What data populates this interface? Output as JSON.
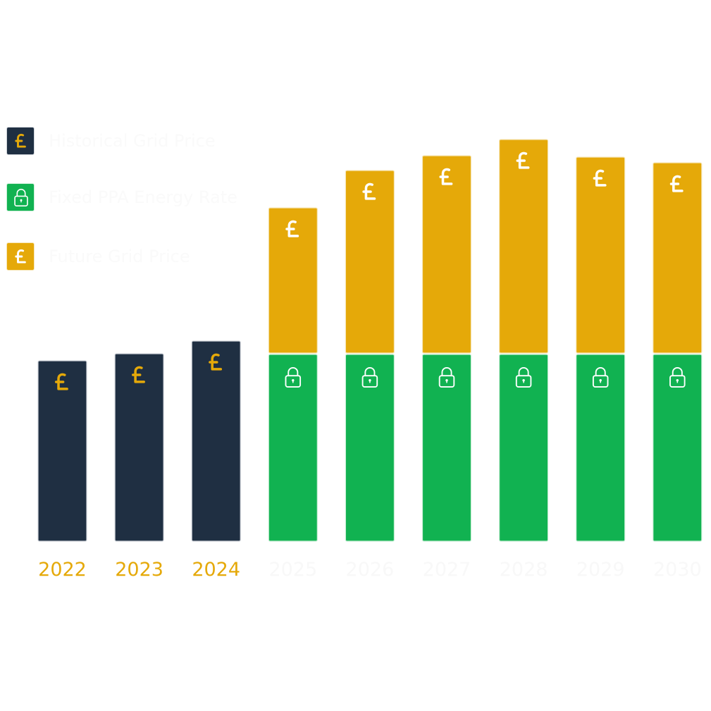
{
  "chart_data": {
    "type": "bar",
    "stacked": true,
    "title": "",
    "xlabel": "",
    "ylabel": "",
    "ylim": [
      0,
      57
    ],
    "grid": false,
    "legend_position": "top-left",
    "categories": [
      "2022",
      "2023",
      "2024",
      "2025",
      "2026",
      "2027",
      "2028",
      "2029",
      "2030"
    ],
    "series": [
      {
        "name": "Historical Grid Price",
        "color": "#1f2f42",
        "icon": "pound-icon",
        "icon_color": "#e5a909",
        "values": [
          25.6,
          26.6,
          28.4,
          null,
          null,
          null,
          null,
          null,
          null
        ]
      },
      {
        "name": "Fixed PPA Energy Rate",
        "color": "#11b251",
        "icon": "lock-icon",
        "icon_color": "#ffffff",
        "values": [
          null,
          null,
          null,
          26.5,
          26.5,
          26.5,
          26.5,
          26.5,
          26.5
        ]
      },
      {
        "name": "Future Grid Price",
        "color": "#e5a909",
        "icon": "pound-icon",
        "icon_color": "#ffffff",
        "values": [
          null,
          null,
          null,
          20.8,
          26.1,
          28.2,
          30.5,
          28.0,
          27.2
        ]
      }
    ],
    "tick_colors": {
      "historical": "#e5a909",
      "future": "#f8f8f8"
    }
  }
}
